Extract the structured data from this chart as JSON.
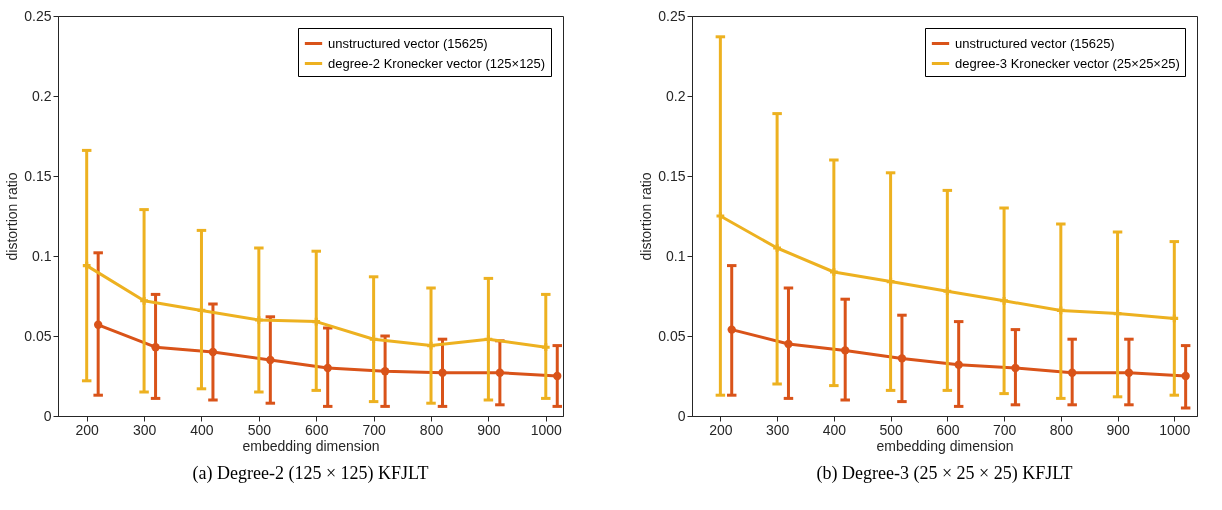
{
  "chart_data": [
    {
      "type": "line",
      "title": "(a) Degree-2 (125 × 125) KFJLT",
      "xlabel": "embedding dimension",
      "ylabel": "distortion ratio",
      "xlim": [
        150,
        1030
      ],
      "xticks": [
        200,
        300,
        400,
        500,
        600,
        700,
        800,
        900,
        1000
      ],
      "ylim": [
        0,
        0.25
      ],
      "yticks": [
        0,
        0.05,
        0.1,
        0.15,
        0.2,
        0.25
      ],
      "grid": false,
      "legend": "top right",
      "series": [
        {
          "name": "unstructured vector (15625)",
          "color": "#d95319",
          "marker": "circle",
          "x": [
            220,
            320,
            420,
            520,
            620,
            720,
            820,
            920,
            1020
          ],
          "values": [
            0.057,
            0.043,
            0.04,
            0.035,
            0.03,
            0.028,
            0.027,
            0.027,
            0.025
          ],
          "errors": [
            [
              0.013,
              0.102
            ],
            [
              0.011,
              0.076
            ],
            [
              0.01,
              0.07
            ],
            [
              0.008,
              0.062
            ],
            [
              0.006,
              0.055
            ],
            [
              0.006,
              0.05
            ],
            [
              0.006,
              0.048
            ],
            [
              0.007,
              0.047
            ],
            [
              0.006,
              0.044
            ]
          ]
        },
        {
          "name": "degree-2 Kronecker vector (125×125)",
          "color": "#edb120",
          "marker": "cross",
          "x": [
            200,
            300,
            400,
            500,
            600,
            700,
            800,
            900,
            1000
          ],
          "values": [
            0.094,
            0.072,
            0.066,
            0.06,
            0.059,
            0.048,
            0.044,
            0.048,
            0.043
          ],
          "errors": [
            [
              0.022,
              0.166
            ],
            [
              0.015,
              0.129
            ],
            [
              0.017,
              0.116
            ],
            [
              0.015,
              0.105
            ],
            [
              0.016,
              0.103
            ],
            [
              0.009,
              0.087
            ],
            [
              0.008,
              0.08
            ],
            [
              0.01,
              0.086
            ],
            [
              0.011,
              0.076
            ]
          ]
        }
      ]
    },
    {
      "type": "line",
      "title": "(b) Degree-3 (25 × 25 × 25) KFJLT",
      "xlabel": "embedding dimension",
      "ylabel": "distortion ratio",
      "xlim": [
        150,
        1040
      ],
      "xticks": [
        200,
        300,
        400,
        500,
        600,
        700,
        800,
        900,
        1000
      ],
      "ylim": [
        0,
        0.25
      ],
      "yticks": [
        0,
        0.05,
        0.1,
        0.15,
        0.2,
        0.25
      ],
      "grid": false,
      "legend": "top right",
      "series": [
        {
          "name": "unstructured vector (15625)",
          "color": "#d95319",
          "marker": "circle",
          "x": [
            220,
            320,
            420,
            520,
            620,
            720,
            820,
            920,
            1020
          ],
          "values": [
            0.054,
            0.045,
            0.041,
            0.036,
            0.032,
            0.03,
            0.027,
            0.027,
            0.025
          ],
          "errors": [
            [
              0.013,
              0.094
            ],
            [
              0.011,
              0.08
            ],
            [
              0.01,
              0.073
            ],
            [
              0.009,
              0.063
            ],
            [
              0.006,
              0.059
            ],
            [
              0.007,
              0.054
            ],
            [
              0.007,
              0.048
            ],
            [
              0.007,
              0.048
            ],
            [
              0.005,
              0.044
            ]
          ]
        },
        {
          "name": "degree-3 Kronecker vector (25×25×25)",
          "color": "#edb120",
          "marker": "cross",
          "x": [
            200,
            300,
            400,
            500,
            600,
            700,
            800,
            900,
            1000
          ],
          "values": [
            0.125,
            0.105,
            0.09,
            0.084,
            0.078,
            0.072,
            0.066,
            0.064,
            0.061
          ],
          "errors": [
            [
              0.013,
              0.237
            ],
            [
              0.02,
              0.189
            ],
            [
              0.019,
              0.16
            ],
            [
              0.016,
              0.152
            ],
            [
              0.016,
              0.141
            ],
            [
              0.014,
              0.13
            ],
            [
              0.011,
              0.12
            ],
            [
              0.012,
              0.115
            ],
            [
              0.013,
              0.109
            ]
          ]
        }
      ]
    }
  ]
}
